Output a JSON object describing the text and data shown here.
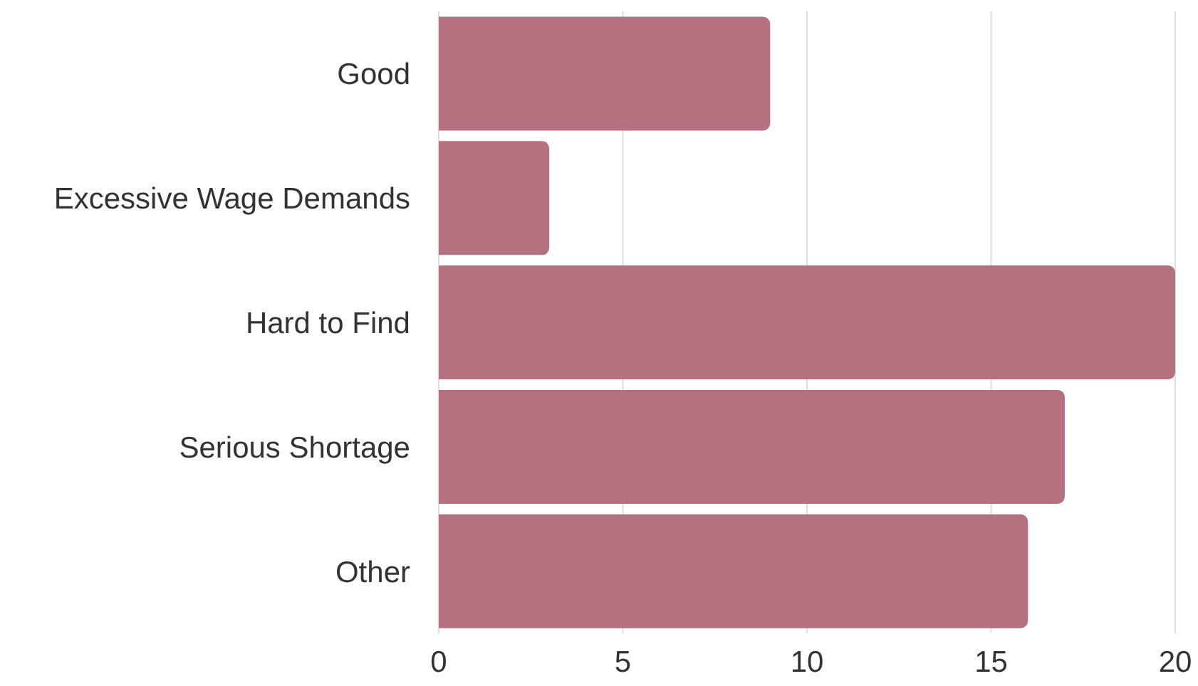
{
  "chart_data": {
    "type": "bar",
    "orientation": "horizontal",
    "categories": [
      "Good",
      "Excessive Wage Demands",
      "Hard to Find",
      "Serious Shortage",
      "Other"
    ],
    "values": [
      9,
      3,
      20,
      17,
      16
    ],
    "color": "#b5717f",
    "xlim": [
      0,
      20
    ],
    "xticks": [
      0,
      5,
      10,
      15,
      20
    ],
    "grid": "x"
  }
}
